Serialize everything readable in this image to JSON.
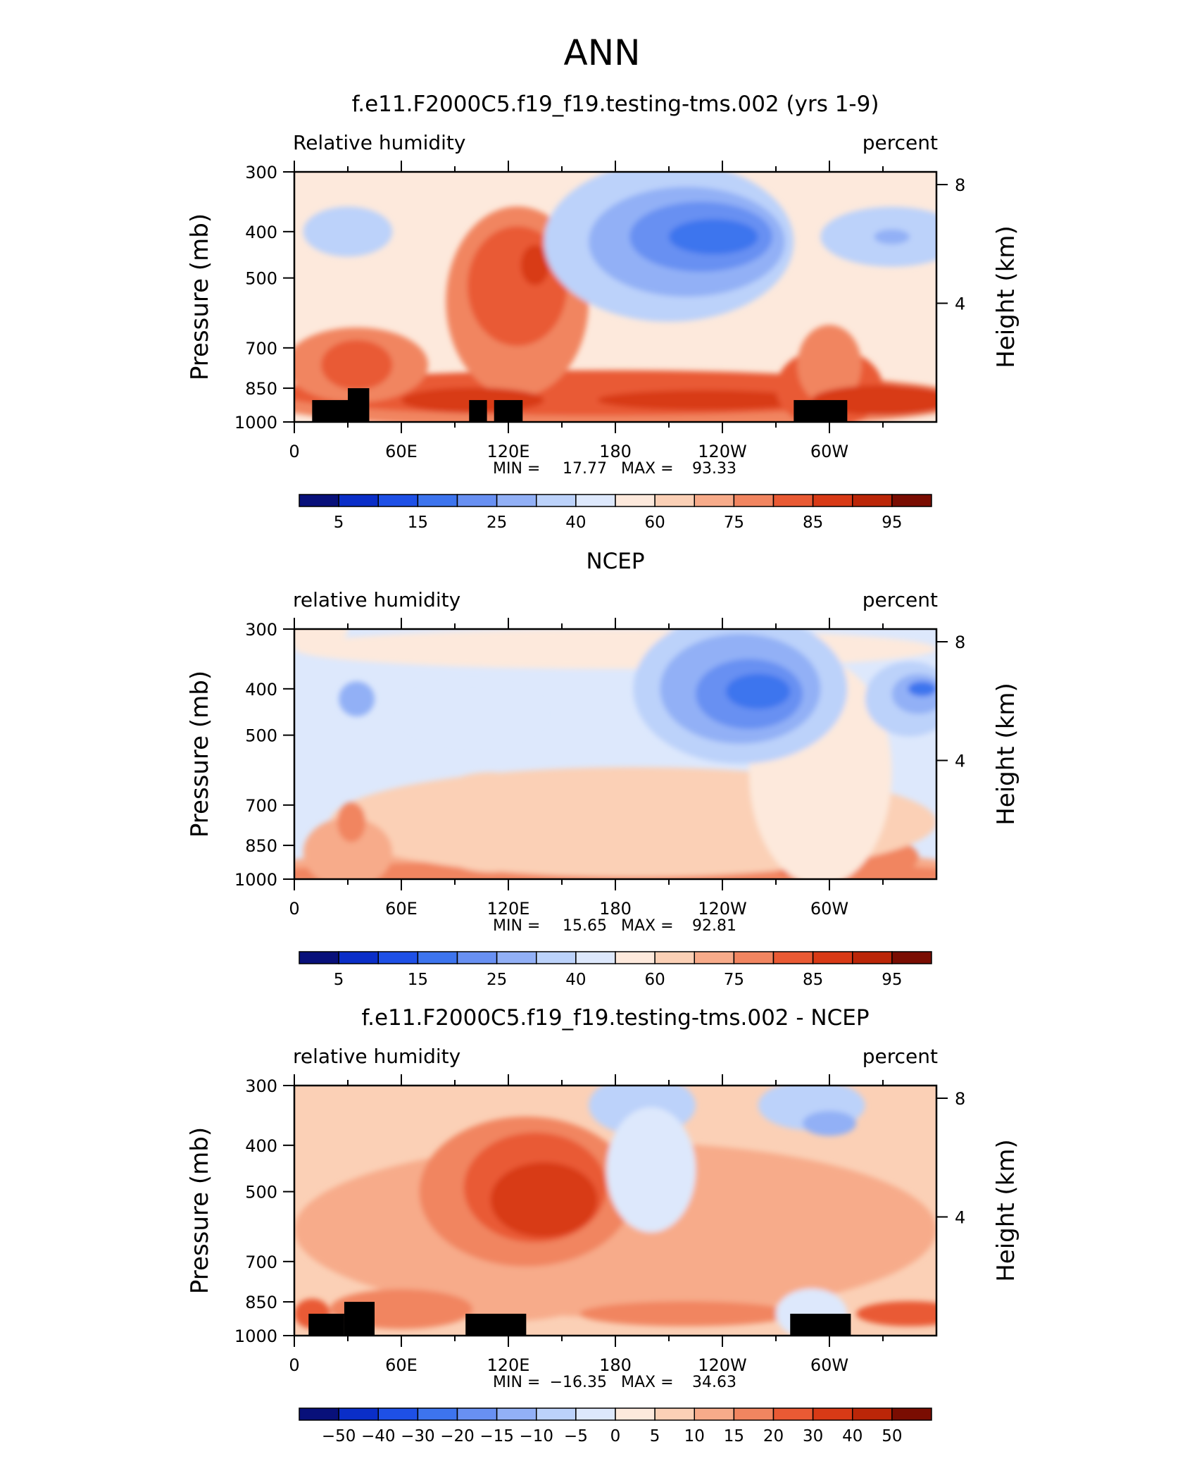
{
  "figure_title": "ANN",
  "chart_data": [
    {
      "type": "heatmap",
      "title": "f.e11.F2000C5.f19_f19.testing-tms.002 (yrs 1-9)",
      "left_label": "Relative humidity",
      "right_label": "percent",
      "ylabel": "Pressure (mb)",
      "ylabel_right": "Height (km)",
      "x_ticks": [
        "0",
        "60E",
        "120E",
        "180",
        "120W",
        "60W"
      ],
      "y_ticks": [
        "300",
        "400",
        "500",
        "700",
        "850",
        "1000"
      ],
      "height_ticks": [
        "4",
        "8"
      ],
      "stats": {
        "min_label": "MIN =",
        "min": "17.77",
        "max_label": "MAX =",
        "max": "93.33"
      },
      "colorbar_labels": [
        "5",
        "15",
        "25",
        "40",
        "60",
        "75",
        "85",
        "95"
      ],
      "has_terrain": true
    },
    {
      "type": "heatmap",
      "title": "NCEP",
      "left_label": "relative humidity",
      "right_label": "percent",
      "ylabel": "Pressure (mb)",
      "ylabel_right": "Height (km)",
      "x_ticks": [
        "0",
        "60E",
        "120E",
        "180",
        "120W",
        "60W"
      ],
      "y_ticks": [
        "300",
        "400",
        "500",
        "700",
        "850",
        "1000"
      ],
      "height_ticks": [
        "4",
        "8"
      ],
      "stats": {
        "min_label": "MIN =",
        "min": "15.65",
        "max_label": "MAX =",
        "max": "92.81"
      },
      "colorbar_labels": [
        "5",
        "15",
        "25",
        "40",
        "60",
        "75",
        "85",
        "95"
      ],
      "has_terrain": false
    },
    {
      "type": "heatmap",
      "title": "f.e11.F2000C5.f19_f19.testing-tms.002 - NCEP",
      "left_label": "relative humidity",
      "right_label": "percent",
      "ylabel": "Pressure (mb)",
      "ylabel_right": "Height (km)",
      "x_ticks": [
        "0",
        "60E",
        "120E",
        "180",
        "120W",
        "60W"
      ],
      "y_ticks": [
        "300",
        "400",
        "500",
        "700",
        "850",
        "1000"
      ],
      "height_ticks": [
        "4",
        "8"
      ],
      "stats": {
        "min_label": "MIN =",
        "min": "−16.35",
        "max_label": "MAX =",
        "max": "34.63"
      },
      "colorbar_labels": [
        "−50",
        "−40",
        "−30",
        "−20",
        "−15",
        "−10",
        "−5",
        "0",
        "5",
        "10",
        "15",
        "20",
        "30",
        "40",
        "50"
      ],
      "has_terrain": true
    }
  ],
  "colors": {
    "blue_to_red": [
      "#08107a",
      "#0a2ec8",
      "#1e50e6",
      "#3d74ee",
      "#6890f2",
      "#92b0f6",
      "#bcd2fa",
      "#dde8fc",
      "#fde9dc",
      "#fbd0b6",
      "#f7ab8a",
      "#f18560",
      "#e95a34",
      "#d83a16",
      "#bb2608",
      "#7a0d02"
    ]
  }
}
